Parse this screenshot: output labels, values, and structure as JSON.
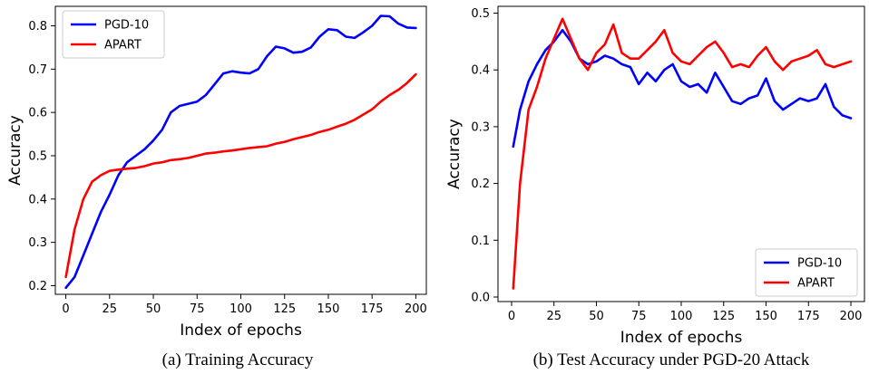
{
  "chart_data": [
    {
      "type": "line",
      "caption": "(a) Training Accuracy",
      "xlabel": "Index of epochs",
      "ylabel": "Accuracy",
      "xlim": [
        -6,
        206
      ],
      "ylim": [
        0.18,
        0.845
      ],
      "xticks": [
        0,
        25,
        50,
        75,
        100,
        125,
        150,
        175,
        200
      ],
      "yticks": [
        0.2,
        0.3,
        0.4,
        0.5,
        0.6,
        0.7,
        0.8
      ],
      "grid": false,
      "legend": "upper-left",
      "series": [
        {
          "name": "PGD-10",
          "color": "#0000ff",
          "x": [
            0,
            5,
            10,
            15,
            20,
            25,
            30,
            35,
            40,
            45,
            50,
            55,
            60,
            65,
            70,
            75,
            80,
            85,
            90,
            95,
            100,
            105,
            110,
            115,
            120,
            125,
            130,
            135,
            140,
            145,
            150,
            155,
            160,
            165,
            170,
            175,
            180,
            185,
            190,
            195,
            200
          ],
          "y": [
            0.195,
            0.22,
            0.27,
            0.32,
            0.37,
            0.41,
            0.455,
            0.485,
            0.5,
            0.515,
            0.535,
            0.56,
            0.6,
            0.615,
            0.62,
            0.625,
            0.64,
            0.665,
            0.69,
            0.695,
            0.692,
            0.69,
            0.7,
            0.73,
            0.752,
            0.748,
            0.738,
            0.74,
            0.75,
            0.775,
            0.792,
            0.79,
            0.775,
            0.772,
            0.785,
            0.8,
            0.823,
            0.822,
            0.805,
            0.796,
            0.795
          ]
        },
        {
          "name": "APART",
          "color": "#ff0000",
          "x": [
            0,
            5,
            10,
            15,
            20,
            25,
            30,
            35,
            40,
            45,
            50,
            55,
            60,
            65,
            70,
            75,
            80,
            85,
            90,
            95,
            100,
            105,
            110,
            115,
            120,
            125,
            130,
            135,
            140,
            145,
            150,
            155,
            160,
            165,
            170,
            175,
            180,
            185,
            190,
            195,
            200
          ],
          "y": [
            0.22,
            0.33,
            0.4,
            0.44,
            0.455,
            0.465,
            0.468,
            0.47,
            0.472,
            0.476,
            0.482,
            0.485,
            0.49,
            0.492,
            0.495,
            0.5,
            0.505,
            0.507,
            0.51,
            0.512,
            0.515,
            0.518,
            0.52,
            0.522,
            0.528,
            0.532,
            0.538,
            0.543,
            0.548,
            0.555,
            0.56,
            0.567,
            0.574,
            0.583,
            0.595,
            0.607,
            0.625,
            0.64,
            0.652,
            0.668,
            0.688
          ]
        }
      ]
    },
    {
      "type": "line",
      "caption": "(b) Test Accuracy under PGD-20 Attack",
      "xlabel": "Index of epochs",
      "ylabel": "Accuracy",
      "xlim": [
        -8,
        208
      ],
      "ylim": [
        -0.008,
        0.512
      ],
      "xticks": [
        0,
        25,
        50,
        75,
        100,
        125,
        150,
        175,
        200
      ],
      "yticks": [
        0.0,
        0.1,
        0.2,
        0.3,
        0.4,
        0.5
      ],
      "grid": false,
      "legend": "lower-right",
      "series": [
        {
          "name": "PGD-10",
          "color": "#0000ff",
          "x": [
            1,
            5,
            10,
            15,
            20,
            25,
            30,
            35,
            40,
            45,
            50,
            55,
            60,
            65,
            70,
            75,
            80,
            85,
            90,
            95,
            100,
            105,
            110,
            115,
            120,
            125,
            130,
            135,
            140,
            145,
            150,
            155,
            160,
            165,
            170,
            175,
            180,
            185,
            190,
            195,
            200
          ],
          "y": [
            0.265,
            0.33,
            0.38,
            0.41,
            0.435,
            0.45,
            0.47,
            0.45,
            0.42,
            0.41,
            0.415,
            0.425,
            0.42,
            0.41,
            0.405,
            0.375,
            0.395,
            0.38,
            0.4,
            0.41,
            0.38,
            0.37,
            0.375,
            0.36,
            0.395,
            0.37,
            0.345,
            0.34,
            0.35,
            0.355,
            0.385,
            0.345,
            0.33,
            0.34,
            0.35,
            0.345,
            0.35,
            0.375,
            0.335,
            0.32,
            0.315
          ]
        },
        {
          "name": "APART",
          "color": "#ff0000",
          "x": [
            1,
            5,
            10,
            15,
            20,
            25,
            30,
            35,
            40,
            45,
            50,
            55,
            60,
            65,
            70,
            75,
            80,
            85,
            90,
            95,
            100,
            105,
            110,
            115,
            120,
            125,
            130,
            135,
            140,
            145,
            150,
            155,
            160,
            165,
            170,
            175,
            180,
            185,
            190,
            195,
            200
          ],
          "y": [
            0.015,
            0.2,
            0.33,
            0.37,
            0.42,
            0.455,
            0.49,
            0.455,
            0.42,
            0.4,
            0.43,
            0.445,
            0.48,
            0.43,
            0.42,
            0.42,
            0.435,
            0.45,
            0.47,
            0.43,
            0.415,
            0.41,
            0.425,
            0.44,
            0.45,
            0.43,
            0.405,
            0.41,
            0.405,
            0.425,
            0.44,
            0.415,
            0.4,
            0.415,
            0.42,
            0.425,
            0.435,
            0.41,
            0.405,
            0.41,
            0.415
          ]
        }
      ]
    }
  ]
}
